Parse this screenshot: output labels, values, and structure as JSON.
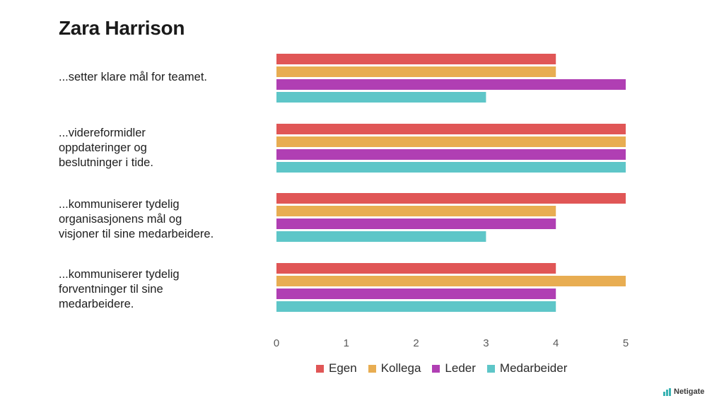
{
  "header": {
    "title": "Zara Harrison"
  },
  "questions": [
    {
      "lines": [
        "...setter klare mål for teamet."
      ]
    },
    {
      "lines": [
        "...videreformidler",
        "oppdateringer og",
        "beslutninger i tide."
      ]
    },
    {
      "lines": [
        "...kommuniserer tydelig",
        "organisasjonens mål og",
        "visjoner til sine medarbeidere."
      ]
    },
    {
      "lines": [
        "...kommuniserer tydelig",
        "forventninger til sine",
        "medarbeidere."
      ]
    }
  ],
  "legend": {
    "items": [
      "Egen",
      "Kollega",
      "Leder",
      "Medarbeider"
    ]
  },
  "brand": {
    "name": "Netigate",
    "icon": "bar-chart-logo-icon"
  },
  "colors": {
    "Egen": "#e05656",
    "Kollega": "#e8ad52",
    "Leder": "#b03fb3",
    "Medarbeider": "#5ec6c8"
  },
  "chart_data": {
    "type": "bar",
    "orientation": "horizontal",
    "categories": [
      "...setter klare mål for teamet.",
      "...videreformidler oppdateringer og beslutninger i tide.",
      "...kommuniserer tydelig organisasjonens mål og visjoner til sine medarbeidere.",
      "...kommuniserer tydelig forventninger til sine medarbeidere."
    ],
    "series": [
      {
        "name": "Egen",
        "values": [
          4,
          5,
          5,
          4
        ]
      },
      {
        "name": "Kollega",
        "values": [
          4,
          5,
          4,
          5
        ]
      },
      {
        "name": "Leder",
        "values": [
          5,
          5,
          4,
          4
        ]
      },
      {
        "name": "Medarbeider",
        "values": [
          3,
          5,
          3,
          4
        ]
      }
    ],
    "ticks": [
      "0",
      "1",
      "2",
      "3",
      "4",
      "5"
    ],
    "xlim": [
      0,
      5
    ],
    "grid": false,
    "legend_position": "bottom"
  }
}
